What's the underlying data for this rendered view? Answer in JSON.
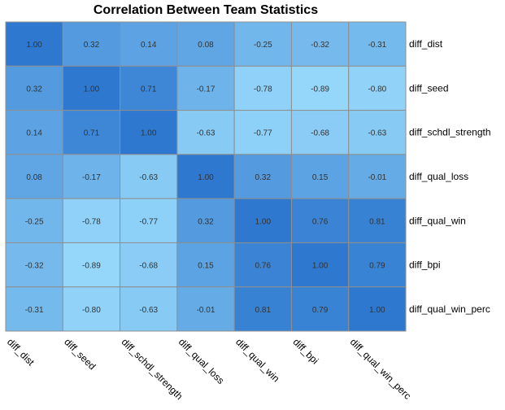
{
  "chart_data": {
    "type": "heatmap",
    "title": "Correlation Between Team Statistics",
    "rows": [
      "diff_dist",
      "diff_seed",
      "diff_schdl_strength",
      "diff_qual_loss",
      "diff_qual_win",
      "diff_bpi",
      "diff_qual_win_perc"
    ],
    "columns": [
      "diff_dist",
      "diff_seed",
      "diff_schdl_strength",
      "diff_qual_loss",
      "diff_qual_win",
      "diff_bpi",
      "diff_qual_win_perc"
    ],
    "values": [
      [
        "1.00",
        "0.32",
        "0.14",
        "0.08",
        "-0.25",
        "-0.32",
        "-0.31"
      ],
      [
        "0.32",
        "1.00",
        "0.71",
        "-0.17",
        "-0.78",
        "-0.89",
        "-0.80"
      ],
      [
        "0.14",
        "0.71",
        "1.00",
        "-0.63",
        "-0.77",
        "-0.68",
        "-0.63"
      ],
      [
        "0.08",
        "-0.17",
        "-0.63",
        "1.00",
        "0.32",
        "0.15",
        "-0.01"
      ],
      [
        "-0.25",
        "-0.78",
        "-0.77",
        "0.32",
        "1.00",
        "0.76",
        "0.81"
      ],
      [
        "-0.32",
        "-0.89",
        "-0.68",
        "0.15",
        "0.76",
        "1.00",
        "0.79"
      ],
      [
        "-0.31",
        "-0.80",
        "-0.63",
        "-0.01",
        "0.81",
        "0.79",
        "1.00"
      ]
    ],
    "color_scale": {
      "low": "#9bdcfd",
      "high": "#2e78cf"
    },
    "grid": true,
    "legend": "none"
  }
}
